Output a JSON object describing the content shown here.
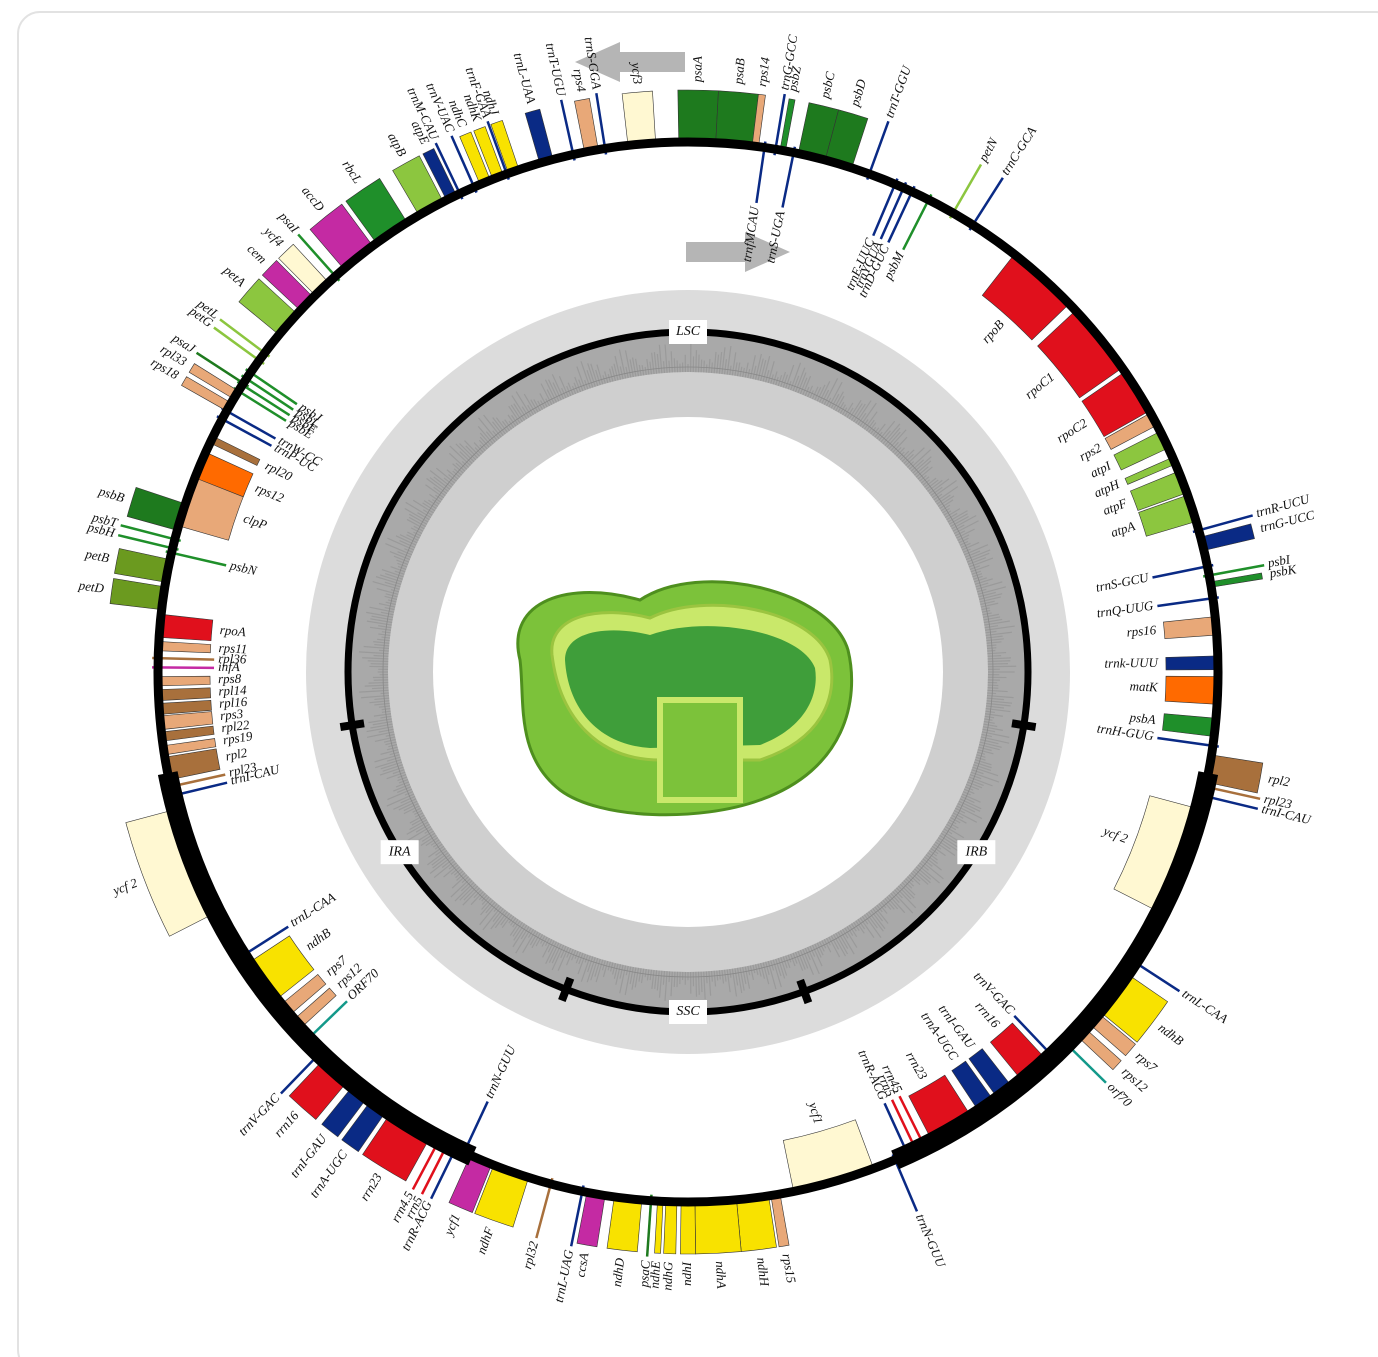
{
  "gene_labels": [
    "trnS-GGA",
    "ycf3",
    "psaA",
    "psaB",
    "rps14",
    "trnfMCAU",
    "trnG-GCC",
    "psbZ",
    "trnS-UGA",
    "psbC",
    "psbD",
    "trnT-GGU",
    "trnE-UUC",
    "trnYGUA",
    "trnD-GUC",
    "psbM",
    "petN",
    "trnC-GCA",
    "rpoB",
    "rpoC1",
    "rpoC2",
    "rps2",
    "atpI",
    "atpH",
    "atpF",
    "atpA",
    "trnR-UCU",
    "trnG-UCC",
    "trnS-GCU",
    "psbI",
    "psbK",
    "trnQ-UUG",
    "rps16",
    "trnk-UUU",
    "matK",
    "psbA",
    "trnH-GUG",
    "rpl2",
    "rpl23",
    "trnI-CAU",
    "ycf 2",
    "trnL-CAA",
    "ndhB",
    "rps7",
    "rps12",
    "orf70",
    "trnV-GAC",
    "rrn16",
    "trnI-GAU",
    "trnA-UGC",
    "rrn23",
    "rrn45",
    "rrn5",
    "trnR-ACG",
    "trnN-GUU",
    "ycf1",
    "rps15",
    "ndhH",
    "ndhA",
    "ndhI",
    "ndhG",
    "ndhE",
    "psaC",
    "ndhD",
    "ccsA",
    "trnL-UAG",
    "rpl32",
    "ndhF",
    "ycf1",
    "trnN-GUU",
    "trnR-ACG",
    "rrn5",
    "rrn4.5",
    "rrn23",
    "trnA-UGC",
    "trnI-GAU",
    "rrn16",
    "trnV-GAC",
    "ORF70",
    "rps12",
    "rps7",
    "ndhB",
    "trnL-CAA",
    "ycf 2",
    "trnI-CAU",
    "rpl23",
    "rpl2",
    "rps19",
    "rpl22",
    "rps3",
    "rpl16",
    "rpl14",
    "rps8",
    "infA",
    "rpl36",
    "rps11",
    "rpoA",
    "psbN",
    "petD",
    "petB",
    "psbH",
    "psbT",
    "psbB",
    "clpP",
    "rps12",
    "rpl20",
    "trnP-UC",
    "trnW-CC",
    "psbE",
    "psbF",
    "psbL",
    "psbJ",
    "rps18",
    "rpl33",
    "psaJ",
    "petG",
    "petL",
    "petA",
    "cem",
    "ycf4",
    "psaI",
    "accD",
    "rbcL",
    "atpB",
    "atpE",
    "trnM-CAU",
    "trnV-UAC",
    "ndhC",
    "ndhK",
    "trnF-GAA",
    "ndhJ",
    "trnL-UAA",
    "trnT-UGU",
    "rps4"
  ],
  "regions": [
    "LSC",
    "IRB",
    "SSC",
    "IRA"
  ]
}
